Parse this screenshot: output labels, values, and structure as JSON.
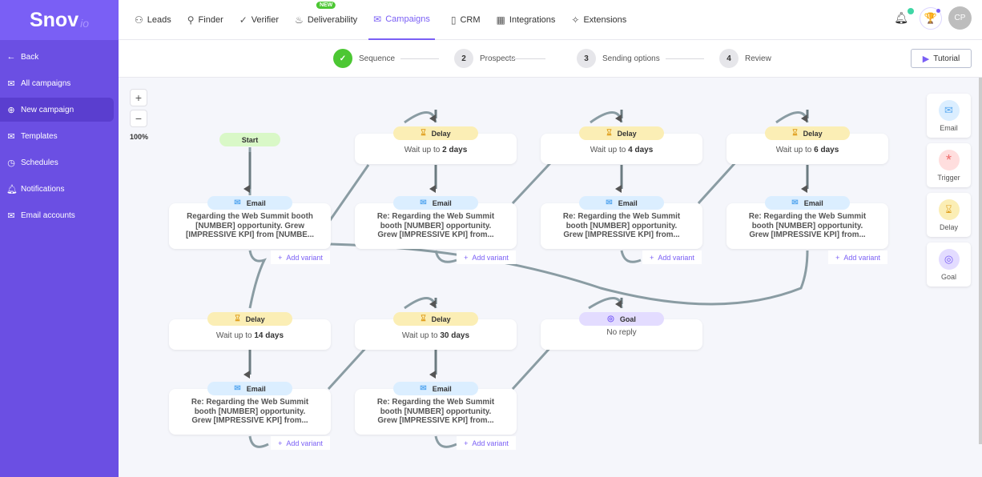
{
  "brand": {
    "logo": "Snov",
    "logo_suffix": "io"
  },
  "sidebar": {
    "items": [
      {
        "label": "Back",
        "icon": "arrow-left-icon"
      },
      {
        "label": "All campaigns",
        "icon": "mail-icon"
      },
      {
        "label": "New campaign",
        "icon": "plus-circle-icon",
        "active": true
      },
      {
        "label": "Templates",
        "icon": "template-icon"
      },
      {
        "label": "Schedules",
        "icon": "clock-icon"
      },
      {
        "label": "Notifications",
        "icon": "bell-icon"
      },
      {
        "label": "Email accounts",
        "icon": "mail-icon"
      }
    ]
  },
  "nav": {
    "items": [
      {
        "label": "Leads",
        "icon": "users-icon"
      },
      {
        "label": "Finder",
        "icon": "search-icon"
      },
      {
        "label": "Verifier",
        "icon": "check-circle-icon"
      },
      {
        "label": "Deliverability",
        "icon": "flame-icon",
        "badge": "NEW"
      },
      {
        "label": "Campaigns",
        "icon": "mail-icon",
        "active": true
      },
      {
        "label": "CRM",
        "icon": "crm-icon"
      },
      {
        "label": "Integrations",
        "icon": "grid-icon"
      },
      {
        "label": "Extensions",
        "icon": "puzzle-icon"
      }
    ],
    "avatar": "CP"
  },
  "steps": [
    {
      "num": "✓",
      "label": "Sequence",
      "done": true
    },
    {
      "num": "2",
      "label": "Prospects"
    },
    {
      "num": "3",
      "label": "Sending options"
    },
    {
      "num": "4",
      "label": "Review"
    }
  ],
  "tutorial": "Tutorial",
  "zoom": {
    "in": "+",
    "out": "−",
    "level": "100%"
  },
  "flow": {
    "start": "Start",
    "email_label": "Email",
    "delay_label": "Delay",
    "goal_label": "Goal",
    "add_variant": "Add variant",
    "wait_prefix": "Wait up to",
    "emails": [
      "Regarding the Web Summit booth [NUMBER] opportunity. Grew [IMPRESSIVE KPI] from [NUMBE...",
      "Re: Regarding the Web Summit booth [NUMBER] opportunity. Grew [IMPRESSIVE KPI] from...",
      "Re: Regarding the Web Summit booth [NUMBER] opportunity. Grew [IMPRESSIVE KPI] from...",
      "Re: Regarding the Web Summit booth [NUMBER] opportunity. Grew [IMPRESSIVE KPI] from...",
      "Re: Regarding the Web Summit booth [NUMBER] opportunity. Grew [IMPRESSIVE KPI] from...",
      "Re: Regarding the Web Summit booth [NUMBER] opportunity. Grew [IMPRESSIVE KPI] from..."
    ],
    "delays": [
      "2 days",
      "4 days",
      "6 days",
      "14 days",
      "30 days"
    ],
    "goal_text": "No reply"
  },
  "palette": [
    {
      "label": "Email",
      "color": "#dbeeff"
    },
    {
      "label": "Trigger",
      "color": "#ffdede"
    },
    {
      "label": "Delay",
      "color": "#fbeeb5"
    },
    {
      "label": "Goal",
      "color": "#e3dcff"
    }
  ],
  "colors": {
    "accent": "#7a5ff5",
    "sidebar": "#6b4fe3",
    "success": "#4cc733"
  }
}
